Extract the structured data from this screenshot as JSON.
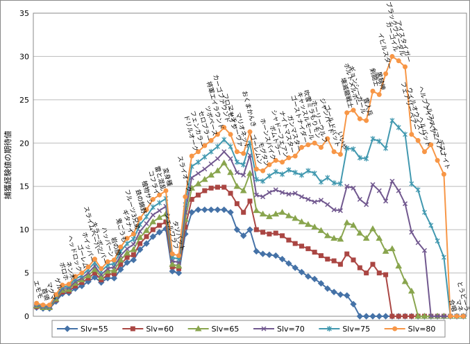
{
  "chart_data": {
    "type": "line",
    "y_label": "捕獲経験値の期待値",
    "categories": [
      "エモモ",
      "首領",
      "マグマ",
      "ゲル",
      "ボロホ",
      "ネン木",
      "ヘッドロック",
      "ゴーレム",
      "ホイッパー",
      "スライムベーバー",
      "キラーボッパー",
      "ハッパーン",
      "岩の顔",
      "鬼ごうも",
      "ギタナイ",
      "フルーツ3兄弟",
      "鉄の錦野",
      "植物サシ",
      "コフライ",
      "雷と混乱",
      "変身種",
      "シェルワラフ",
      "タソバット",
      "スライオーク",
      "ドリルオーク",
      "フェンカラー",
      "セロブラー",
      "ツボペース",
      "将軍エイラウンド",
      "カーゴファウンド",
      "フローセイジ",
      "マッチャーヴァ",
      "マリオネット",
      "おくまかんき",
      "ゴーレムン",
      "モグタン",
      "ホーンスバイク",
      "ボムトラー",
      "シャドーフェアン",
      "ナイトマスター",
      "ガンマスター",
      "ゴーストナイダー",
      "キャッスルモール",
      "吹雪ミラもりモン",
      "ホーリーウルフ",
      "ジャンパード",
      "ゴールドバット",
      "いいや",
      "壊滅龍戦士",
      "ボルトメルボー",
      "ギョンシーガール",
      "雪人兵",
      "剣闘士",
      "黒騎神",
      "イビルスター",
      "ガーゴイル",
      "ブラックウイーダル",
      "アイスタイガー",
      "フェアリーペアー",
      "ウィルオウィスプ",
      "ヘルバット",
      "ヘルファイアベアー",
      "ヘルファイアベアー",
      "デスナイト",
      "合唱",
      "マネ",
      "とうどーう"
    ],
    "series": [
      {
        "name": "Slv=55",
        "color": "#4572a7",
        "marker": "diamond",
        "values": [
          1.0,
          0.9,
          0.9,
          1.7,
          2.6,
          2.7,
          3.2,
          3.5,
          4.0,
          4.5,
          3.9,
          4.4,
          4.4,
          5.4,
          6.2,
          6.5,
          7.7,
          8.4,
          9.2,
          9.7,
          10.1,
          5.2,
          5.0,
          9.5,
          12.0,
          12.3,
          12.3,
          12.3,
          12.3,
          12.3,
          12.0,
          10,
          9.3,
          10,
          7.5,
          7.2,
          7.1,
          7.0,
          6.6,
          6.1,
          5.6,
          5.1,
          4.6,
          4.3,
          3.8,
          3.2,
          2.8,
          2.5,
          2.4,
          1.4,
          0,
          0,
          0,
          0,
          0,
          0,
          0,
          0,
          0,
          0,
          0,
          0,
          0,
          0,
          0,
          0,
          0
        ]
      },
      {
        "name": "Slv=60",
        "color": "#aa4643",
        "marker": "square",
        "values": [
          1.1,
          1.0,
          1.0,
          1.9,
          2.8,
          2.9,
          3.5,
          3.9,
          4.4,
          5.0,
          4.2,
          4.8,
          4.9,
          6.0,
          6.8,
          7.1,
          8.4,
          9.2,
          10.0,
          10.5,
          10.9,
          5.7,
          5.5,
          10.3,
          13.5,
          14.0,
          14.5,
          14.8,
          14.9,
          14.9,
          14.2,
          13,
          12,
          13.3,
          10,
          9.7,
          9.5,
          9.6,
          9.3,
          8.8,
          8.4,
          8.1,
          7.8,
          7.4,
          7.0,
          6.6,
          6.4,
          6.0,
          7.2,
          6.5,
          5.6,
          5.0,
          6.0,
          5.0,
          4.8,
          0,
          0,
          0,
          0,
          0,
          0,
          0,
          0,
          0,
          0,
          0,
          0
        ]
      },
      {
        "name": "Slv=65",
        "color": "#89a54e",
        "marker": "triangle",
        "values": [
          1.2,
          1.0,
          1.0,
          2.0,
          3.0,
          3.1,
          3.8,
          4.2,
          4.7,
          5.4,
          4.5,
          5.2,
          5.3,
          6.5,
          7.3,
          7.7,
          9.1,
          9.9,
          10.9,
          11.4,
          11.8,
          6.0,
          5.8,
          11.2,
          14.8,
          15.3,
          15.8,
          16.3,
          16.8,
          17.7,
          16.6,
          15,
          14.5,
          16.5,
          12.2,
          11.8,
          11.5,
          11.8,
          12.0,
          11.6,
          11.3,
          10.9,
          10.6,
          10.3,
          9.9,
          9.3,
          9.0,
          8.9,
          10.8,
          10.5,
          9.6,
          9.0,
          10.1,
          9.0,
          7.5,
          7.8,
          5.8,
          4.0,
          2.9,
          0,
          0,
          0,
          0,
          0,
          0,
          0,
          0
        ]
      },
      {
        "name": "Slv=70",
        "color": "#71588f",
        "marker": "x",
        "values": [
          1.3,
          1.1,
          1.1,
          2.2,
          3.2,
          3.3,
          4.0,
          4.4,
          5.0,
          5.8,
          4.8,
          5.5,
          5.7,
          7.0,
          7.8,
          8.3,
          9.8,
          10.7,
          11.7,
          12.2,
          12.7,
          6.4,
          6.2,
          12,
          16,
          16.5,
          17,
          17.6,
          18.2,
          19,
          18.2,
          16.6,
          16.3,
          18.6,
          14,
          13.8,
          14.3,
          14.6,
          14.3,
          14.1,
          14.2,
          13.8,
          13.5,
          13.2,
          13.4,
          12.9,
          12.3,
          12.2,
          15,
          14.8,
          13.5,
          12.9,
          15.2,
          14.5,
          13.3,
          15.6,
          14.5,
          13.0,
          9.7,
          8.5,
          7.6,
          0,
          0,
          0,
          0,
          0,
          0
        ]
      },
      {
        "name": "Slv=75",
        "color": "#4198af",
        "marker": "star",
        "values": [
          1.4,
          1.2,
          1.2,
          2.3,
          3.4,
          3.5,
          4.3,
          4.7,
          5.4,
          6.2,
          5.2,
          5.9,
          6.1,
          7.5,
          8.4,
          8.9,
          10.6,
          11.5,
          12.6,
          13.1,
          13.6,
          6.8,
          6.6,
          12.9,
          17.3,
          17.8,
          18.4,
          19,
          19.6,
          20.4,
          19.6,
          17.8,
          17.5,
          20.0,
          15.8,
          15.6,
          16.2,
          16.7,
          16.4,
          16.9,
          16.6,
          16.3,
          16.8,
          16.5,
          15.5,
          16,
          15.4,
          15.3,
          19.4,
          19.3,
          18.3,
          18.2,
          20.5,
          20.2,
          19.4,
          22.6,
          21.8,
          21.0,
          15.3,
          14.6,
          12.0,
          10.5,
          8.7,
          6.8,
          0,
          0,
          0
        ]
      },
      {
        "name": "Slv=80",
        "color": "#f79646",
        "marker": "circle",
        "values": [
          1.5,
          1.3,
          1.3,
          2.5,
          3.6,
          3.7,
          4.6,
          5.0,
          5.7,
          6.6,
          5.5,
          6.3,
          6.5,
          8.0,
          9.0,
          9.5,
          11.3,
          12.3,
          13.5,
          14.0,
          14.5,
          7.2,
          7.0,
          13.8,
          18.5,
          19,
          19.7,
          20.3,
          21.0,
          21.8,
          21,
          19,
          18.8,
          21.3,
          17,
          16.8,
          17.5,
          18,
          17.8,
          18.3,
          18.5,
          19.5,
          19.8,
          20,
          19.5,
          20.5,
          19,
          18.7,
          23.5,
          23.8,
          22.8,
          22.6,
          26,
          25.6,
          28,
          30,
          29.5,
          28.8,
          21,
          20.3,
          19,
          19.8,
          18,
          16.4,
          0,
          0,
          0
        ]
      }
    ],
    "ylim": [
      0,
      35
    ],
    "yticks": [
      0,
      5,
      10,
      15,
      20,
      25,
      30,
      35
    ],
    "grid": true,
    "legend": "bottom"
  }
}
